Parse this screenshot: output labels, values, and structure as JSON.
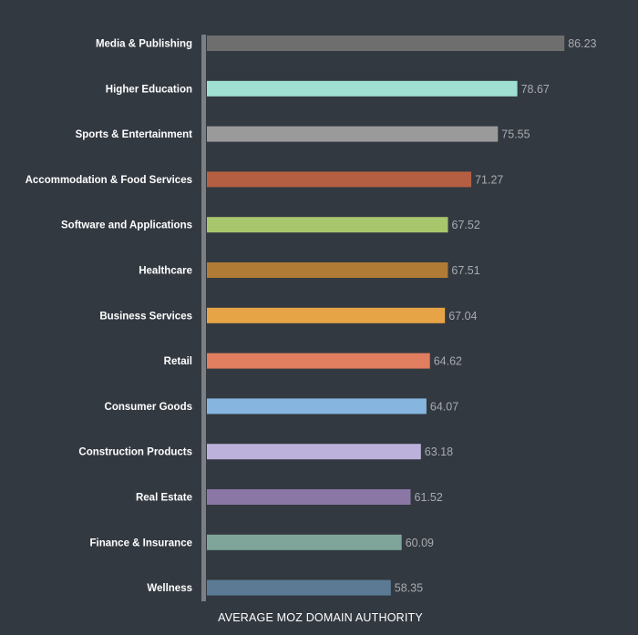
{
  "chart_data": {
    "type": "bar",
    "orientation": "horizontal",
    "xlabel": "AVERAGE MOZ DOMAIN AUTHORITY",
    "xlim": [
      0,
      86.23
    ],
    "axis_break": true,
    "grid": false,
    "legend": "none",
    "categories": [
      "Media & Publishing",
      "Higher Education",
      "Sports & Entertainment",
      "Accommodation & Food Services",
      "Software and Applications",
      "Healthcare",
      "Business Services",
      "Retail",
      "Consumer Goods",
      "Construction Products",
      "Real Estate",
      "Finance & Insurance",
      "Wellness"
    ],
    "values": [
      86.23,
      78.67,
      75.55,
      71.27,
      67.52,
      67.51,
      67.04,
      64.62,
      64.07,
      63.18,
      61.52,
      60.09,
      58.35
    ],
    "value_labels": [
      "86.23",
      "78.67",
      "75.55",
      "71.27",
      "67.52",
      "67.51",
      "67.04",
      "64.62",
      "64.07",
      "63.18",
      "61.52",
      "60.09",
      "58.35"
    ],
    "colors": [
      "#6e6e6e",
      "#9fe0d2",
      "#9a9a9a",
      "#b55f42",
      "#a8c66c",
      "#b07c35",
      "#e7a446",
      "#e07e5f",
      "#86b6df",
      "#bcb1da",
      "#8b77a6",
      "#7fa59a",
      "#5c7a93"
    ]
  }
}
